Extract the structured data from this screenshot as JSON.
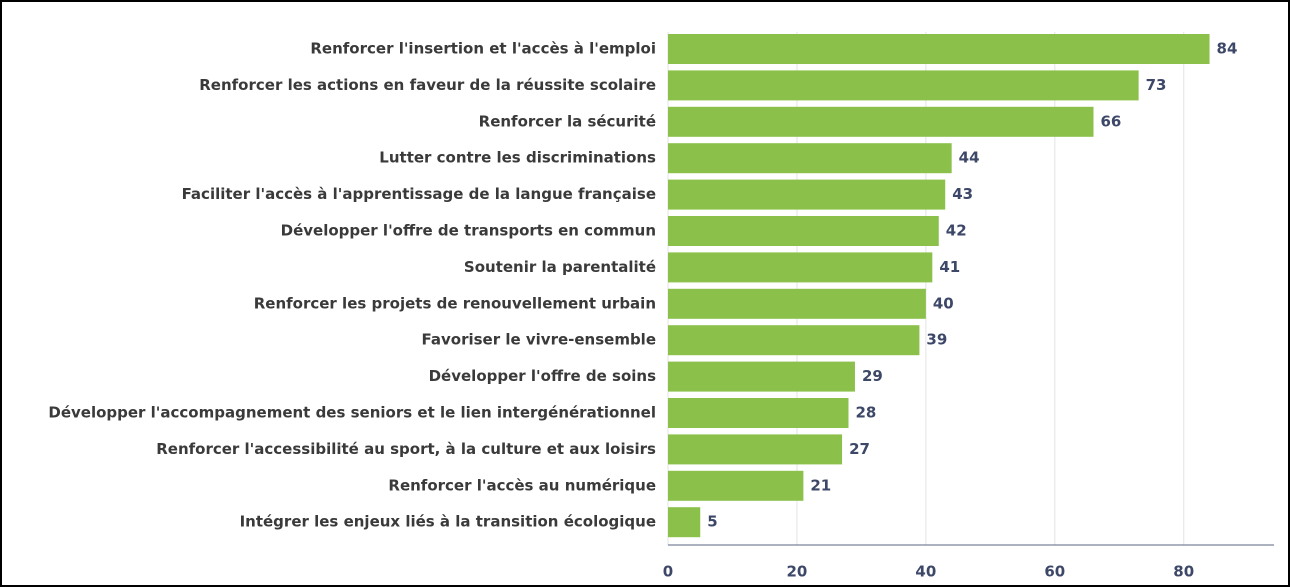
{
  "chart_data": {
    "type": "barh",
    "categories": [
      "Renforcer l'insertion et l'accès à l'emploi",
      "Renforcer les actions en faveur de la réussite scolaire",
      "Renforcer la sécurité",
      "Lutter contre les discriminations",
      "Faciliter l'accès à l'apprentissage de la langue française",
      "Développer l'offre de transports en commun",
      "Soutenir la parentalité",
      "Renforcer les projets de renouvellement urbain",
      "Favoriser le vivre-ensemble",
      "Développer l'offre de soins",
      "Développer l'accompagnement des seniors et le lien intergénérationnel",
      "Renforcer l'accessibilité au sport, à la culture et aux loisirs",
      "Renforcer l'accès au numérique",
      "Intégrer les enjeux liés à la transition écologique"
    ],
    "values": [
      84,
      73,
      66,
      44,
      43,
      42,
      41,
      40,
      39,
      29,
      28,
      27,
      21,
      5
    ],
    "color": "#8bc14a",
    "xlim": [
      0,
      94
    ],
    "xticks": [
      0,
      20,
      40,
      60,
      80
    ],
    "grid": true
  }
}
